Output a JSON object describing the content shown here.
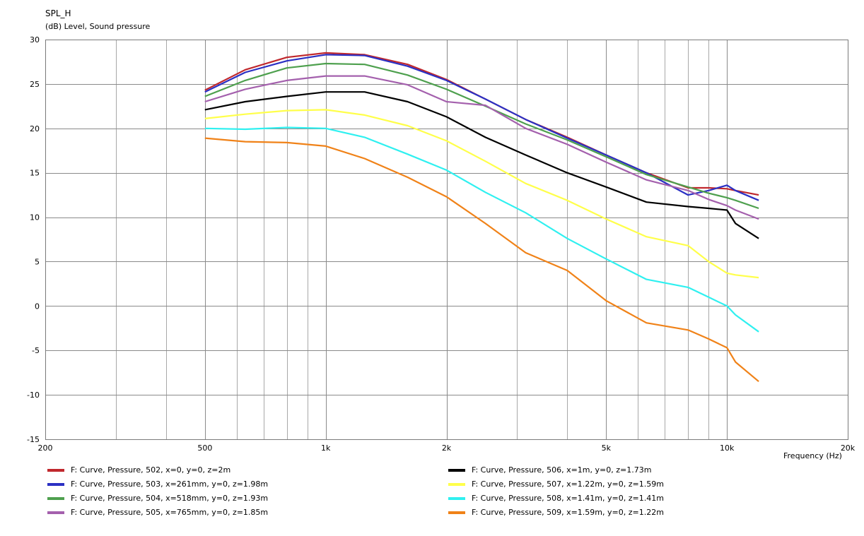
{
  "chart_data": {
    "type": "line",
    "title": "SPL_H",
    "ylabel": "(dB)  Level, Sound pressure",
    "xlabel": "Frequency  (Hz)",
    "xscale": "log",
    "xlim": [
      200,
      20000
    ],
    "ylim": [
      -15,
      30
    ],
    "grid": true,
    "legend_position": "bottom",
    "x_ticks": [
      {
        "value": 200,
        "label": "200"
      },
      {
        "value": 500,
        "label": "500"
      },
      {
        "value": 1000,
        "label": "1k"
      },
      {
        "value": 2000,
        "label": "2k"
      },
      {
        "value": 5000,
        "label": "5k"
      },
      {
        "value": 10000,
        "label": "10k"
      },
      {
        "value": 20000,
        "label": "20k"
      }
    ],
    "y_ticks": [
      {
        "value": 30,
        "label": "30"
      },
      {
        "value": 25,
        "label": "25"
      },
      {
        "value": 20,
        "label": "20"
      },
      {
        "value": 15,
        "label": "15"
      },
      {
        "value": 10,
        "label": "10"
      },
      {
        "value": 5,
        "label": "5"
      },
      {
        "value": 0,
        "label": "0"
      },
      {
        "value": -5,
        "label": "-5"
      },
      {
        "value": -10,
        "label": "-10"
      },
      {
        "value": -15,
        "label": "-15"
      }
    ],
    "x": [
      500,
      630,
      800,
      1000,
      1250,
      1600,
      2000,
      2500,
      3150,
      4000,
      5000,
      6300,
      8000,
      9000,
      10000,
      10500,
      12000
    ],
    "series": [
      {
        "name": "F: Curve, Pressure, 502, x=0, y=0, z=2m",
        "color": "#c0282d",
        "values": [
          24.3,
          26.6,
          28.0,
          28.5,
          28.3,
          27.2,
          25.5,
          23.3,
          21.0,
          19.0,
          17.0,
          15.0,
          13.3,
          13.3,
          13.2,
          13.0,
          12.5
        ]
      },
      {
        "name": "F: Curve, Pressure, 503, x=261mm, y=0, z=1.98m",
        "color": "#2b30c3",
        "values": [
          24.1,
          26.3,
          27.6,
          28.3,
          28.2,
          27.0,
          25.4,
          23.3,
          21.0,
          18.9,
          17.0,
          15.0,
          12.5,
          13.0,
          13.6,
          13.0,
          11.9
        ]
      },
      {
        "name": "F: Curve, Pressure, 504, x=518mm, y=0, z=1.93m",
        "color": "#4ea04e",
        "values": [
          23.6,
          25.4,
          26.8,
          27.3,
          27.2,
          26.0,
          24.4,
          22.5,
          20.5,
          18.7,
          16.8,
          14.8,
          13.4,
          12.7,
          12.2,
          11.9,
          11.0
        ]
      },
      {
        "name": "F: Curve, Pressure, 505, x=765mm, y=0, z=1.85m",
        "color": "#a460ad",
        "values": [
          23.0,
          24.4,
          25.4,
          25.9,
          25.9,
          24.9,
          23.0,
          22.6,
          20.0,
          18.2,
          16.2,
          14.2,
          13.0,
          12.0,
          11.3,
          10.8,
          9.8
        ]
      },
      {
        "name": "F: Curve, Pressure, 506, x=1m, y=0, z=1.73m",
        "color": "#000000",
        "values": [
          22.1,
          23.0,
          23.6,
          24.1,
          24.1,
          23.0,
          21.3,
          19.0,
          17.0,
          15.0,
          13.4,
          11.7,
          11.2,
          11.0,
          10.8,
          9.3,
          7.6
        ]
      },
      {
        "name": "F: Curve, Pressure, 507, x=1.22m, y=0, z=1.59m",
        "color": "#ffff4a",
        "values": [
          21.1,
          21.6,
          22.0,
          22.1,
          21.5,
          20.3,
          18.6,
          16.3,
          13.8,
          11.9,
          9.8,
          7.8,
          6.8,
          5.0,
          3.7,
          3.5,
          3.2
        ]
      },
      {
        "name": "F: Curve, Pressure, 508, x=1.41m, y=0, z=1.41m",
        "color": "#2ff0f0",
        "values": [
          20.0,
          19.9,
          20.1,
          20.0,
          19.0,
          17.1,
          15.3,
          12.8,
          10.5,
          7.6,
          5.3,
          3.0,
          2.1,
          1.0,
          0.0,
          -1.0,
          -2.9
        ]
      },
      {
        "name": "F: Curve, Pressure, 509, x=1.59m, y=0, z=1.22m",
        "color": "#f08218",
        "values": [
          18.9,
          18.5,
          18.4,
          18.0,
          16.6,
          14.5,
          12.3,
          9.3,
          6.0,
          4.0,
          0.6,
          -1.9,
          -2.7,
          -3.7,
          -4.7,
          -6.3,
          -8.5
        ]
      }
    ]
  }
}
